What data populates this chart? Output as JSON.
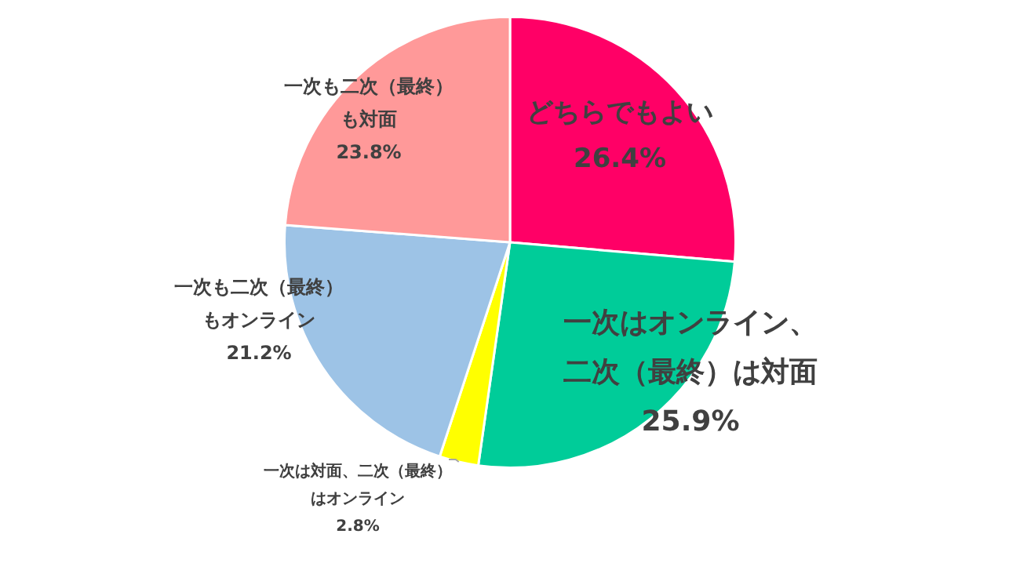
{
  "chart_data": {
    "type": "pie",
    "categories": [
      "どちらでもよい",
      "一次はオンライン、二次（最終）は対面",
      "一次は対面、二次（最終）はオンライン",
      "一次も二次（最終）もオンライン",
      "一次も二次（最終）も対面"
    ],
    "values": [
      26.4,
      25.9,
      2.8,
      21.2,
      23.8
    ],
    "value_labels": [
      "26.4%",
      "25.9%",
      "2.8%",
      "21.2%",
      "23.8%"
    ],
    "colors": [
      "#ff0066",
      "#00cc99",
      "#ffff00",
      "#9dc3e6",
      "#ff9999"
    ],
    "legend": false
  }
}
